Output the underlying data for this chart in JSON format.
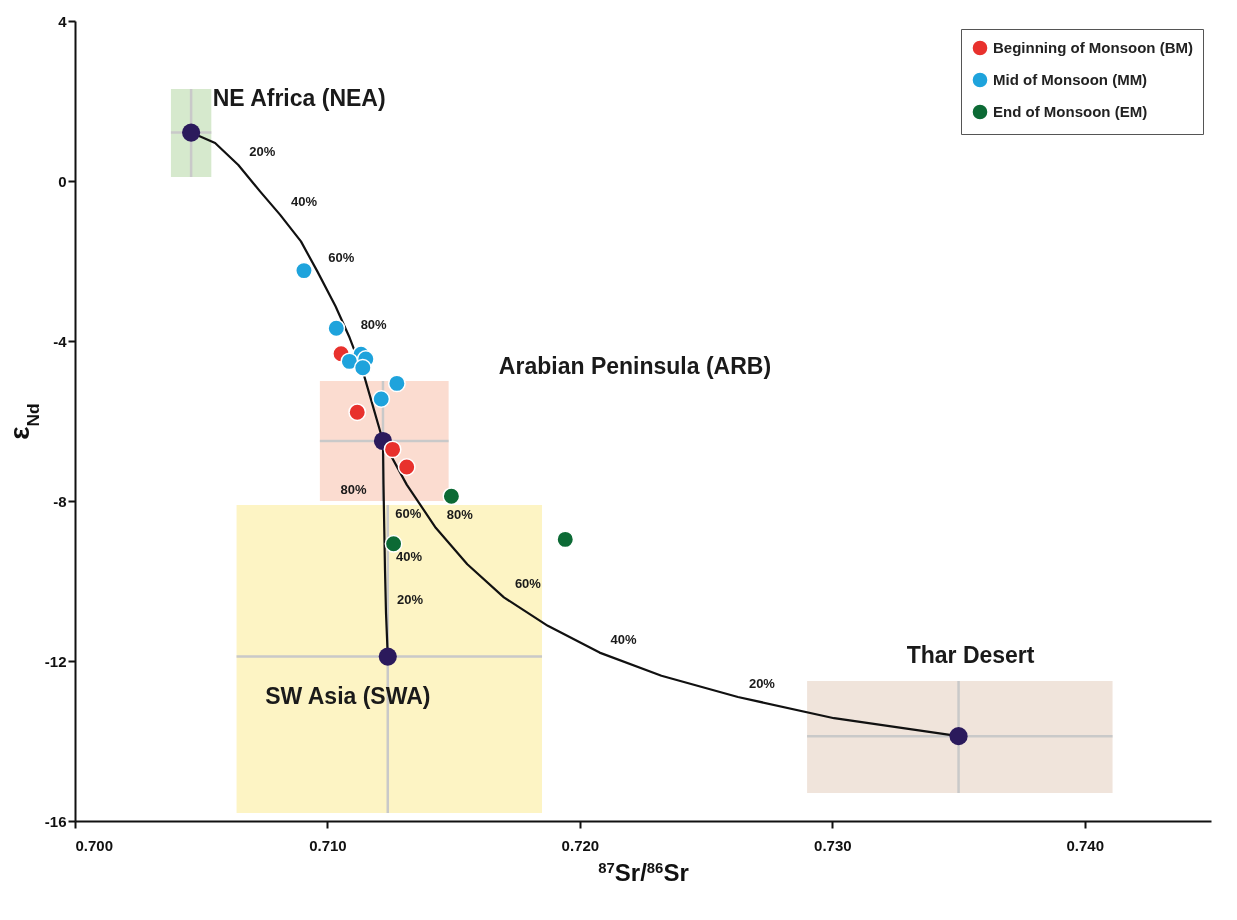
{
  "chart_data": {
    "type": "scatter",
    "xlabel": "$^{87}$Sr/$^{86}$Sr",
    "ylabel": "ε$_{Nd}$",
    "xlim": [
      0.7,
      0.745
    ],
    "xticks": [
      {
        "value": 0.7,
        "label": "0.700"
      },
      {
        "value": 0.71,
        "label": "0.710"
      },
      {
        "value": 0.72,
        "label": "0.720"
      },
      {
        "value": 0.73,
        "label": "0.730"
      },
      {
        "value": 0.74,
        "label": "0.740"
      }
    ],
    "ylim": [
      -16,
      4
    ],
    "yticks": [
      -16,
      -12,
      -8,
      -4,
      0,
      4
    ],
    "grid": false,
    "legend": "top right",
    "marker": "circle",
    "series": [
      {
        "type": "line",
        "marker": "none",
        "color": "#111111",
        "x": [
          0.7046,
          0.70555,
          0.70647,
          0.70733,
          0.70812,
          0.70895,
          0.7096,
          0.71032,
          0.71088,
          0.71144,
          0.7122,
          0.71314,
          0.71429,
          0.71554,
          0.71699,
          0.71873,
          0.72078,
          0.72323,
          0.72626,
          0.73007,
          0.735
        ],
        "values": [
          1.21,
          0.95,
          0.4,
          -0.26,
          -0.84,
          -1.51,
          -2.26,
          -3.13,
          -3.92,
          -4.84,
          -6.5,
          -7.59,
          -8.67,
          -9.58,
          -10.41,
          -11.12,
          -11.79,
          -12.37,
          -12.9,
          -13.43,
          -13.88
        ]
      },
      {
        "type": "line",
        "marker": "none",
        "color": "#111111",
        "x": [
          0.7122,
          0.71222,
          0.71225,
          0.71228,
          0.71232,
          0.71239
        ],
        "values": [
          -6.5,
          -7.58,
          -8.66,
          -9.73,
          -10.81,
          -11.89
        ]
      },
      {
        "color": "#2b1a5c",
        "x": [
          0.7046,
          0.7122,
          0.71239,
          0.735
        ],
        "values": [
          1.21,
          -6.5,
          -11.89,
          -13.88
        ],
        "xerrors": [
          [
            0.7038,
            0.7054
          ],
          [
            0.7097,
            0.7148
          ],
          [
            0.7064,
            0.7185
          ],
          [
            0.729,
            0.7411
          ]
        ],
        "errors": [
          [
            0.1,
            2.3
          ],
          [
            -8.0,
            -5.0
          ],
          [
            -15.8,
            -8.1
          ],
          [
            -15.3,
            -12.5
          ]
        ]
      },
      {
        "name": "Beginning of Monsoon (BM)",
        "color": "#e8312d",
        "x": [
          0.71054,
          0.71118,
          0.71258,
          0.71314
        ],
        "values": [
          -4.32,
          -5.78,
          -6.71,
          -7.15
        ]
      },
      {
        "name": "Mid of Monsoon (MM)",
        "color": "#1ea3dc",
        "x": [
          0.70907,
          0.71035,
          0.71133,
          0.71152,
          0.71087,
          0.7114,
          0.71275,
          0.71213
        ],
        "values": [
          -2.24,
          -3.68,
          -4.33,
          -4.45,
          -4.51,
          -4.67,
          -5.06,
          -5.45
        ]
      },
      {
        "name": "End of Monsoon (EM)",
        "color": "#0c6a35",
        "x": [
          0.71491,
          0.71262,
          0.71942
        ],
        "values": [
          -7.88,
          -9.07,
          -8.96
        ]
      }
    ],
    "annotations": [
      "NE Africa (NEA)",
      "Arabian Peninsula (ARB)",
      "SW Asia (SWA)",
      "Thar Desert",
      {
        "text": "20%",
        "x": 0.70647,
        "y": 0.4
      },
      {
        "text": "40%",
        "x": 0.70812,
        "y": -0.84
      },
      {
        "text": "60%",
        "x": 0.7096,
        "y": -2.26
      },
      {
        "text": "80%",
        "x": 0.71088,
        "y": -3.92
      },
      {
        "text": "80%",
        "x": 0.71222,
        "y": -7.58
      },
      {
        "text": "60%",
        "x": 0.71225,
        "y": -8.66
      },
      {
        "text": "40%",
        "x": 0.71228,
        "y": -9.73
      },
      {
        "text": "20%",
        "x": 0.71232,
        "y": -10.81
      },
      {
        "text": "80%",
        "x": 0.71429,
        "y": -8.67
      },
      {
        "text": "60%",
        "x": 0.71699,
        "y": -10.41
      },
      {
        "text": "40%",
        "x": 0.72078,
        "y": -11.79
      },
      {
        "text": "20%",
        "x": 0.72626,
        "y": -12.9
      }
    ]
  }
}
